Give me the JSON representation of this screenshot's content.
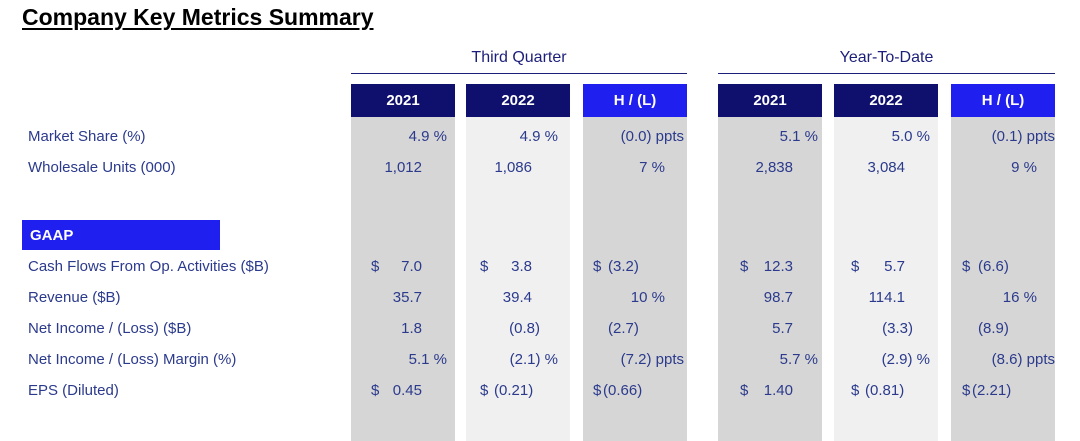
{
  "title": "Company Key Metrics Summary",
  "groups": [
    {
      "name": "Third Quarter",
      "columns": [
        "2021",
        "2022",
        "H / (L)"
      ]
    },
    {
      "name": "Year-To-Date",
      "columns": [
        "2021",
        "2022",
        "H / (L)"
      ]
    }
  ],
  "section_label": "GAAP",
  "rows": [
    {
      "label": "Market Share (%)",
      "cells": [
        {
          "text": "4.9  %"
        },
        {
          "text": "4.9  %"
        },
        {
          "text": "(0.0) ppts"
        },
        {
          "text": "5.1  %"
        },
        {
          "text": "5.0  %"
        },
        {
          "text": "(0.1) ppts"
        }
      ]
    },
    {
      "label": "Wholesale Units (000)",
      "cells": [
        {
          "text": "1,012"
        },
        {
          "text": "1,086"
        },
        {
          "text": "7  %"
        },
        {
          "text": "2,838"
        },
        {
          "text": "3,084"
        },
        {
          "text": "9  %"
        }
      ]
    },
    {
      "label": "Cash Flows From Op. Activities ($B)",
      "cells": [
        {
          "prefix": "$",
          "text": "7.0"
        },
        {
          "prefix": "$",
          "text": "3.8"
        },
        {
          "prefix": "$",
          "text": "(3.2)"
        },
        {
          "prefix": "$",
          "text": "12.3"
        },
        {
          "prefix": "$",
          "text": "5.7"
        },
        {
          "prefix": "$",
          "text": "(6.6)"
        }
      ]
    },
    {
      "label": "Revenue ($B)",
      "cells": [
        {
          "text": "35.7"
        },
        {
          "text": "39.4"
        },
        {
          "text": "10  %"
        },
        {
          "text": "98.7"
        },
        {
          "text": "114.1"
        },
        {
          "text": "16  %"
        }
      ]
    },
    {
      "label": "Net Income / (Loss) ($B)",
      "cells": [
        {
          "text": "1.8"
        },
        {
          "text": "(0.8)"
        },
        {
          "text": "(2.7)"
        },
        {
          "text": "5.7"
        },
        {
          "text": "(3.3)"
        },
        {
          "text": "(8.9)"
        }
      ]
    },
    {
      "label": "Net Income / (Loss) Margin (%)",
      "cells": [
        {
          "text": "5.1  %"
        },
        {
          "text": "(2.1) %"
        },
        {
          "text": "(7.2) ppts"
        },
        {
          "text": "5.7  %"
        },
        {
          "text": "(2.9) %"
        },
        {
          "text": "(8.6) ppts"
        }
      ]
    },
    {
      "label": "EPS (Diluted)",
      "cells": [
        {
          "prefix": "$",
          "text": "0.45"
        },
        {
          "prefix": "$",
          "text": "(0.21)"
        },
        {
          "prefix": "$",
          "text": "(0.66)"
        },
        {
          "prefix": "$",
          "text": "1.40"
        },
        {
          "prefix": "$",
          "text": "(0.81)"
        },
        {
          "prefix": "$",
          "text": "(2.21)"
        }
      ]
    }
  ],
  "colors": {
    "navy": "#0f0f6e",
    "highlight_blue": "#1f1ff0",
    "text_blue": "#2b3a8c",
    "column_gray_dark": "#d6d6d6",
    "column_gray_light": "#f0f0f0"
  }
}
